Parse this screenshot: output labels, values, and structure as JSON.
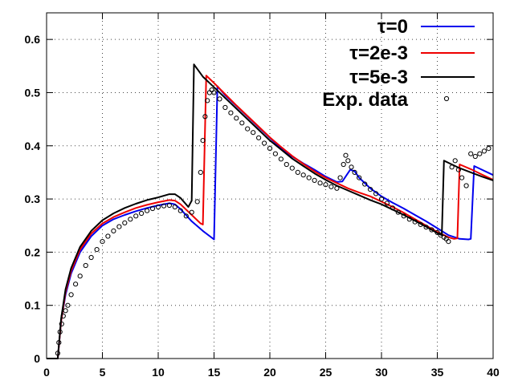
{
  "chart_data": {
    "type": "line",
    "title": "",
    "xlabel": "",
    "ylabel": "",
    "xlim": [
      0,
      40
    ],
    "ylim": [
      0,
      0.65
    ],
    "x_ticks": [
      0,
      5,
      10,
      15,
      20,
      25,
      30,
      35,
      40
    ],
    "y_ticks": [
      0,
      0.1,
      0.2,
      0.3,
      0.4,
      0.5,
      0.6
    ],
    "grid": true,
    "legend_position": "top-right",
    "series": [
      {
        "name": "τ=0",
        "color": "#0000ee",
        "x": [
          0,
          1.0,
          1.3,
          1.7,
          2.2,
          3.0,
          4.0,
          5.0,
          6.0,
          7.0,
          8.0,
          9.0,
          10.0,
          11.0,
          11.5,
          12.0,
          13.0,
          14.0,
          15.0,
          15.3,
          16.0,
          17.0,
          18.0,
          19.0,
          20.0,
          21.0,
          22.0,
          23.0,
          24.0,
          25.0,
          26.0,
          26.5,
          27.2,
          27.6,
          28.0,
          29.0,
          30.0,
          31.0,
          32.0,
          33.0,
          34.0,
          35.0,
          36.0,
          37.0,
          37.8,
          38.0,
          38.3,
          39.0,
          40.0
        ],
        "y": [
          0,
          0.0,
          0.07,
          0.12,
          0.16,
          0.2,
          0.23,
          0.25,
          0.262,
          0.27,
          0.277,
          0.283,
          0.288,
          0.292,
          0.29,
          0.281,
          0.258,
          0.24,
          0.224,
          0.512,
          0.495,
          0.475,
          0.455,
          0.435,
          0.415,
          0.395,
          0.38,
          0.367,
          0.355,
          0.342,
          0.332,
          0.333,
          0.355,
          0.352,
          0.34,
          0.32,
          0.305,
          0.293,
          0.282,
          0.27,
          0.258,
          0.245,
          0.232,
          0.225,
          0.224,
          0.225,
          0.362,
          0.355,
          0.345
        ]
      },
      {
        "name": "τ=2e-3",
        "color": "#ee0000",
        "x": [
          0,
          1.0,
          1.3,
          1.7,
          2.2,
          3.0,
          4.0,
          5.0,
          6.0,
          7.0,
          8.0,
          9.0,
          10.0,
          11.0,
          11.5,
          12.0,
          13.0,
          13.8,
          14.0,
          14.3,
          15.0,
          16.0,
          17.0,
          18.0,
          19.0,
          20.0,
          21.0,
          22.0,
          23.0,
          24.0,
          25.0,
          26.0,
          27.0,
          28.0,
          29.0,
          30.0,
          31.0,
          32.0,
          33.0,
          34.0,
          35.0,
          36.0,
          36.5,
          36.8,
          37.0,
          38.0,
          39.0,
          40.0
        ],
        "y": [
          0,
          0.0,
          0.07,
          0.125,
          0.165,
          0.205,
          0.235,
          0.254,
          0.266,
          0.275,
          0.283,
          0.289,
          0.294,
          0.298,
          0.297,
          0.29,
          0.27,
          0.254,
          0.252,
          0.532,
          0.518,
          0.497,
          0.476,
          0.456,
          0.436,
          0.416,
          0.398,
          0.381,
          0.366,
          0.352,
          0.34,
          0.33,
          0.32,
          0.312,
          0.305,
          0.295,
          0.285,
          0.274,
          0.262,
          0.25,
          0.238,
          0.228,
          0.225,
          0.226,
          0.365,
          0.356,
          0.346,
          0.336
        ]
      },
      {
        "name": "τ=5e-3",
        "color": "#000000",
        "x": [
          0,
          1.0,
          1.3,
          1.7,
          2.2,
          3.0,
          4.0,
          5.0,
          6.0,
          7.0,
          8.0,
          9.0,
          10.0,
          11.0,
          11.5,
          12.0,
          12.7,
          13.0,
          13.2,
          14.0,
          15.0,
          16.0,
          17.0,
          18.0,
          19.0,
          20.0,
          21.0,
          22.0,
          23.0,
          24.0,
          25.0,
          26.0,
          27.0,
          28.0,
          29.0,
          30.0,
          31.0,
          32.0,
          33.0,
          34.0,
          35.0,
          35.4,
          35.6,
          36.0,
          37.0,
          38.0,
          39.0,
          40.0
        ],
        "y": [
          0,
          0.0,
          0.075,
          0.13,
          0.17,
          0.21,
          0.24,
          0.26,
          0.273,
          0.283,
          0.291,
          0.298,
          0.303,
          0.309,
          0.309,
          0.302,
          0.285,
          0.297,
          0.553,
          0.53,
          0.51,
          0.49,
          0.47,
          0.45,
          0.43,
          0.41,
          0.393,
          0.376,
          0.362,
          0.348,
          0.336,
          0.325,
          0.316,
          0.307,
          0.298,
          0.29,
          0.28,
          0.27,
          0.259,
          0.248,
          0.236,
          0.232,
          0.372,
          0.368,
          0.358,
          0.35,
          0.342,
          0.335
        ]
      }
    ],
    "points": {
      "name": "Exp. data",
      "x": [
        1.0,
        1.1,
        1.2,
        1.35,
        1.5,
        1.7,
        1.9,
        2.2,
        2.6,
        3.0,
        3.5,
        4.0,
        4.5,
        5.0,
        5.5,
        6.0,
        6.5,
        7.0,
        7.5,
        8.0,
        8.5,
        9.0,
        9.5,
        10.0,
        10.5,
        11.0,
        11.5,
        12.0,
        12.5,
        13.0,
        13.5,
        13.8,
        14.0,
        14.2,
        14.4,
        14.6,
        14.8,
        15.0,
        15.5,
        16.0,
        16.5,
        17.0,
        17.5,
        18.0,
        18.5,
        19.0,
        19.5,
        20.0,
        20.5,
        21.0,
        21.5,
        22.0,
        22.5,
        23.0,
        23.5,
        24.0,
        24.5,
        25.0,
        25.5,
        26.0,
        26.3,
        26.6,
        26.8,
        27.0,
        27.3,
        27.6,
        28.0,
        28.5,
        29.0,
        29.5,
        30.0,
        30.5,
        31.0,
        31.5,
        32.0,
        32.5,
        33.0,
        33.5,
        34.0,
        34.5,
        35.0,
        35.3,
        35.6,
        35.8,
        36.0,
        36.3,
        36.6,
        36.9,
        37.2,
        37.6,
        38.0,
        38.4,
        38.8,
        39.2,
        39.6
      ],
      "y": [
        0.01,
        0.03,
        0.05,
        0.065,
        0.08,
        0.09,
        0.1,
        0.12,
        0.14,
        0.155,
        0.175,
        0.19,
        0.205,
        0.22,
        0.23,
        0.24,
        0.248,
        0.255,
        0.262,
        0.268,
        0.273,
        0.278,
        0.282,
        0.285,
        0.287,
        0.288,
        0.285,
        0.278,
        0.268,
        0.275,
        0.295,
        0.35,
        0.41,
        0.455,
        0.485,
        0.5,
        0.505,
        0.5,
        0.488,
        0.472,
        0.462,
        0.452,
        0.443,
        0.432,
        0.425,
        0.415,
        0.405,
        0.395,
        0.385,
        0.375,
        0.365,
        0.358,
        0.35,
        0.345,
        0.34,
        0.335,
        0.33,
        0.327,
        0.323,
        0.32,
        0.34,
        0.365,
        0.382,
        0.372,
        0.36,
        0.35,
        0.34,
        0.328,
        0.318,
        0.31,
        0.3,
        0.292,
        0.283,
        0.275,
        0.268,
        0.262,
        0.257,
        0.252,
        0.247,
        0.242,
        0.237,
        0.232,
        0.228,
        0.225,
        0.22,
        0.36,
        0.372,
        0.355,
        0.34,
        0.325,
        0.385,
        0.38,
        0.385,
        0.39,
        0.395
      ]
    }
  }
}
